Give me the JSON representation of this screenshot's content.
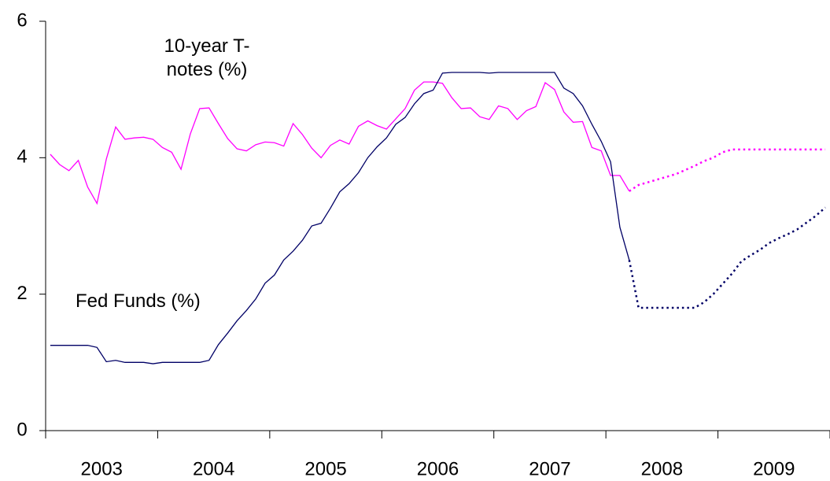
{
  "chart_data": {
    "type": "line",
    "categories": [
      null,
      null,
      null,
      null,
      null,
      null,
      "2003",
      null,
      null,
      null,
      null,
      null,
      null,
      null,
      null,
      null,
      null,
      null,
      "2004",
      null,
      null,
      null,
      null,
      null,
      null,
      null,
      null,
      null,
      null,
      null,
      "2005",
      null,
      null,
      null,
      null,
      null,
      null,
      null,
      null,
      null,
      null,
      null,
      "2006",
      null,
      null,
      null,
      null,
      null,
      null,
      null,
      null,
      null,
      null,
      null,
      "2007",
      null,
      null,
      null,
      null,
      null,
      null,
      null,
      null,
      null,
      null,
      null,
      "2008",
      null,
      null,
      null,
      null,
      null,
      null,
      null,
      null,
      null,
      null,
      null,
      "2009",
      null,
      null,
      null,
      null,
      null
    ],
    "ylim": [
      0,
      6
    ],
    "yticks": [
      0,
      2,
      4,
      6
    ],
    "grid": false,
    "series": [
      {
        "name": "10-year T-notes (%)",
        "color": "#ff00ff",
        "values": [
          4.05,
          3.9,
          3.81,
          3.96,
          3.57,
          3.33,
          3.98,
          4.45,
          4.27,
          4.29,
          4.3,
          4.27,
          4.15,
          4.08,
          3.83,
          4.35,
          4.72,
          4.73,
          4.5,
          4.28,
          4.13,
          4.1,
          4.19,
          4.23,
          4.22,
          4.17,
          4.5,
          4.34,
          4.14,
          4.0,
          4.18,
          4.26,
          4.2,
          4.46,
          4.54,
          4.47,
          4.42,
          4.57,
          4.72,
          4.99,
          5.11,
          5.11,
          5.09,
          4.88,
          4.72,
          4.73,
          4.6,
          4.56,
          4.76,
          4.72,
          4.56,
          4.69,
          4.75,
          5.1,
          5.0,
          4.67,
          4.52,
          4.53,
          4.15,
          4.1,
          3.74,
          3.74,
          3.51,
          null,
          null,
          null,
          null,
          null,
          null,
          null,
          null,
          null,
          null,
          null,
          null,
          null,
          null,
          null,
          null,
          null,
          null,
          null,
          null,
          null
        ],
        "forecast": [
          null,
          null,
          null,
          null,
          null,
          null,
          null,
          null,
          null,
          null,
          null,
          null,
          null,
          null,
          null,
          null,
          null,
          null,
          null,
          null,
          null,
          null,
          null,
          null,
          null,
          null,
          null,
          null,
          null,
          null,
          null,
          null,
          null,
          null,
          null,
          null,
          null,
          null,
          null,
          null,
          null,
          null,
          null,
          null,
          null,
          null,
          null,
          null,
          null,
          null,
          null,
          null,
          null,
          null,
          null,
          null,
          null,
          null,
          null,
          null,
          null,
          null,
          3.51,
          3.6,
          3.64,
          3.68,
          3.72,
          3.76,
          3.82,
          3.88,
          3.95,
          4.0,
          4.08,
          4.12,
          4.12,
          4.12,
          4.12,
          4.12,
          4.12,
          4.12,
          4.12,
          4.12,
          4.12,
          4.12
        ]
      },
      {
        "name": "Fed Funds (%)",
        "color": "#000066",
        "values": [
          1.25,
          1.25,
          1.25,
          1.25,
          1.25,
          1.22,
          1.01,
          1.03,
          1.0,
          1.0,
          1.0,
          0.98,
          1.0,
          1.0,
          1.0,
          1.0,
          1.0,
          1.03,
          1.26,
          1.43,
          1.61,
          1.76,
          1.93,
          2.16,
          2.28,
          2.5,
          2.63,
          2.79,
          3.0,
          3.04,
          3.26,
          3.5,
          3.62,
          3.78,
          4.0,
          4.16,
          4.29,
          4.49,
          4.59,
          4.79,
          4.94,
          4.99,
          5.24,
          5.25,
          5.25,
          5.25,
          5.25,
          5.24,
          5.25,
          5.25,
          5.25,
          5.25,
          5.25,
          5.25,
          5.25,
          5.02,
          4.94,
          4.76,
          4.49,
          4.24,
          3.94,
          2.98,
          2.5,
          null,
          null,
          null,
          null,
          null,
          null,
          null,
          null,
          null,
          null,
          null,
          null,
          null,
          null,
          null,
          null,
          null,
          null,
          null,
          null,
          null
        ],
        "forecast": [
          null,
          null,
          null,
          null,
          null,
          null,
          null,
          null,
          null,
          null,
          null,
          null,
          null,
          null,
          null,
          null,
          null,
          null,
          null,
          null,
          null,
          null,
          null,
          null,
          null,
          null,
          null,
          null,
          null,
          null,
          null,
          null,
          null,
          null,
          null,
          null,
          null,
          null,
          null,
          null,
          null,
          null,
          null,
          null,
          null,
          null,
          null,
          null,
          null,
          null,
          null,
          null,
          null,
          null,
          null,
          null,
          null,
          null,
          null,
          null,
          null,
          null,
          2.5,
          1.8,
          1.8,
          1.8,
          1.8,
          1.8,
          1.8,
          1.8,
          1.88,
          2.0,
          2.15,
          2.3,
          2.48,
          2.57,
          2.65,
          2.75,
          2.82,
          2.88,
          2.95,
          3.05,
          3.15,
          3.27
        ]
      }
    ]
  }
}
